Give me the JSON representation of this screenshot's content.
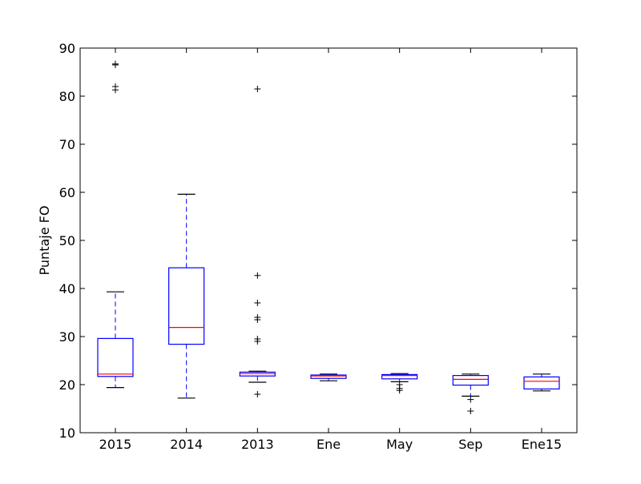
{
  "chart_data": {
    "type": "box",
    "title": "",
    "xlabel": "",
    "ylabel": "Puntaje FO",
    "ylim": [
      10,
      90
    ],
    "yticks": [
      10,
      20,
      30,
      40,
      50,
      60,
      70,
      80,
      90
    ],
    "grid": false,
    "categories": [
      "2015",
      "2014",
      "2013",
      "Ene",
      "May",
      "Sep",
      "Ene15"
    ],
    "boxes": [
      {
        "category": "2015",
        "whisker_low": 19.4,
        "q1": 21.7,
        "median": 22.2,
        "q3": 29.6,
        "whisker_high": 39.3,
        "outliers": [
          86.5,
          86.7,
          82.0,
          81.3
        ]
      },
      {
        "category": "2014",
        "whisker_low": 17.2,
        "q1": 28.4,
        "median": 31.9,
        "q3": 44.3,
        "whisker_high": 59.6,
        "outliers": []
      },
      {
        "category": "2013",
        "whisker_low": 20.5,
        "q1": 21.8,
        "median": 22.3,
        "q3": 22.6,
        "whisker_high": 22.8,
        "outliers": [
          81.5,
          42.7,
          37.0,
          34.0,
          33.5,
          29.5,
          29.0,
          18.0
        ]
      },
      {
        "category": "Ene",
        "whisker_low": 20.8,
        "q1": 21.3,
        "median": 21.8,
        "q3": 22.0,
        "whisker_high": 22.2,
        "outliers": []
      },
      {
        "category": "May",
        "whisker_low": 20.6,
        "q1": 21.2,
        "median": 21.9,
        "q3": 22.1,
        "whisker_high": 22.3,
        "outliers": [
          20.0,
          19.2,
          18.8
        ]
      },
      {
        "category": "Sep",
        "whisker_low": 17.6,
        "q1": 19.9,
        "median": 21.1,
        "q3": 21.9,
        "whisker_high": 22.2,
        "outliers": [
          16.9,
          14.5
        ]
      },
      {
        "category": "Ene15",
        "whisker_low": 18.7,
        "q1": 19.1,
        "median": 20.7,
        "q3": 21.6,
        "whisker_high": 22.2,
        "outliers": []
      }
    ],
    "colors": {
      "box": "#0000ff",
      "median": "#ff0000",
      "whisker": "#0000ff",
      "cap": "#000000",
      "outlier": "#000000",
      "axes": "#000000"
    }
  }
}
